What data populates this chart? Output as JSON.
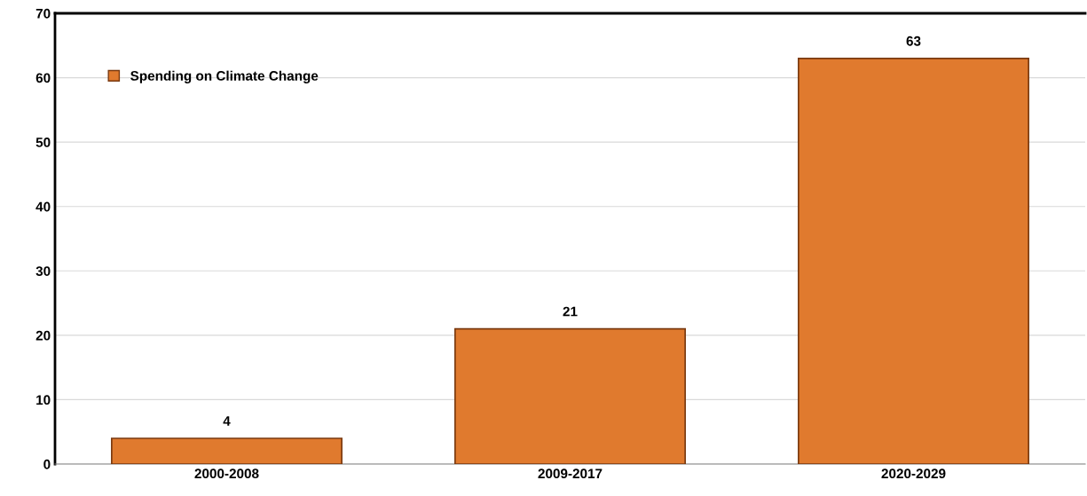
{
  "chart_data": {
    "type": "bar",
    "categories": [
      "2000-2008",
      "2009-2017",
      "2020-2029"
    ],
    "series": [
      {
        "name": "Spending on Climate Change",
        "color": "#e07a2e",
        "values": [
          4,
          21,
          63
        ]
      }
    ],
    "ylim": [
      0,
      70
    ],
    "yticks": [
      0,
      10,
      20,
      30,
      40,
      50,
      60,
      70
    ],
    "grid": "y",
    "legend": "top left",
    "data_labels": true
  }
}
